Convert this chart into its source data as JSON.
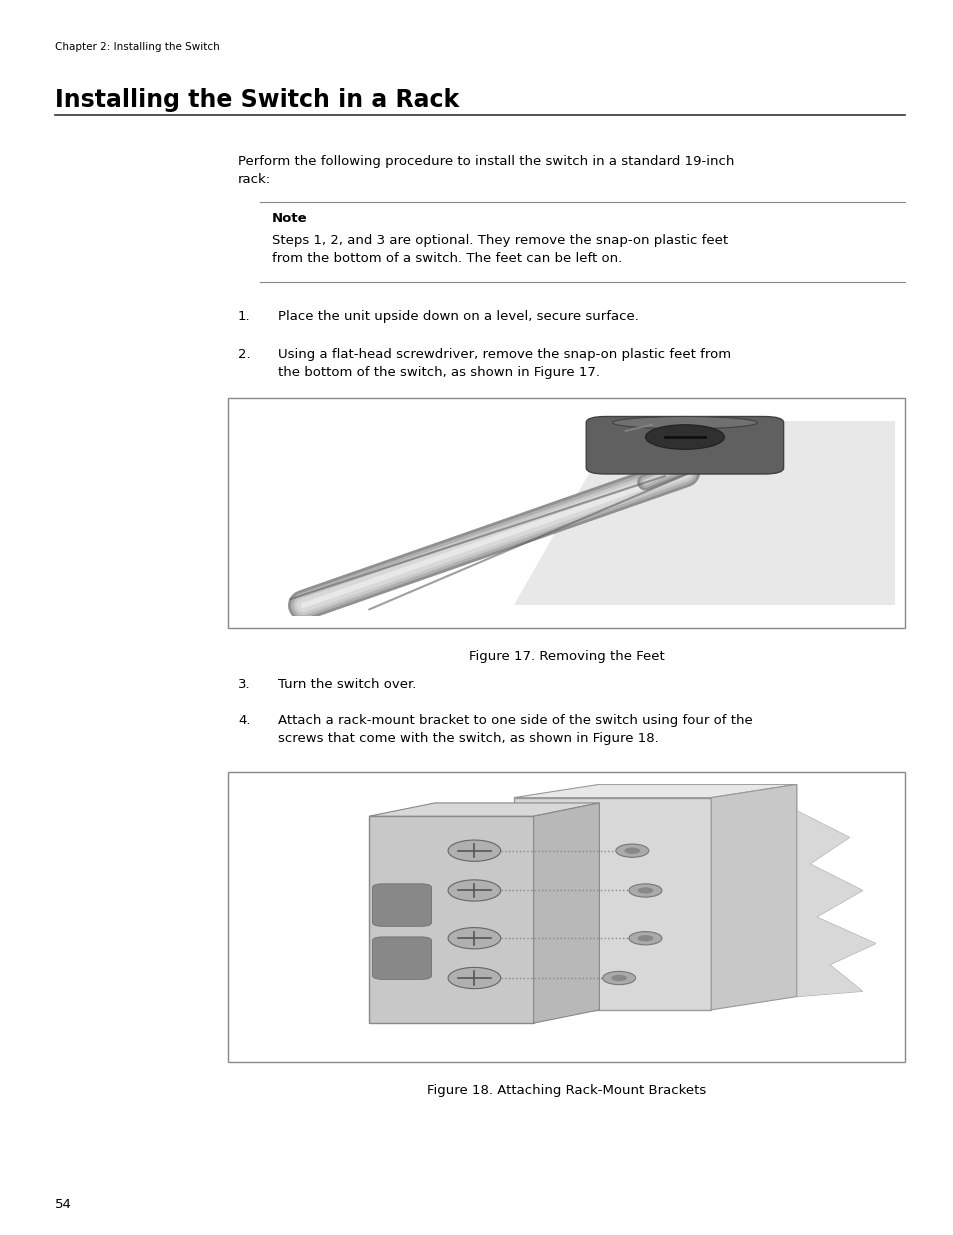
{
  "page_width": 9.54,
  "page_height": 12.35,
  "background_color": "#ffffff",
  "header_text": "Chapter 2: Installing the Switch",
  "header_fontsize": 7.5,
  "title_text": "Installing the Switch in a Rack",
  "title_fontsize": 17,
  "body_text_intro": "Perform the following procedure to install the switch in a standard 19-inch\nrack:",
  "body_fontsize": 9.5,
  "note_label": "Note",
  "note_body": "Steps 1, 2, and 3 are optional. They remove the snap-on plastic feet\nfrom the bottom of a switch. The feet can be left on.",
  "note_fontsize": 9.5,
  "steps": [
    "Place the unit upside down on a level, secure surface.",
    "Using a flat-head screwdriver, remove the snap-on plastic feet from\nthe bottom of the switch, as shown in Figure 17.",
    "Turn the switch over.",
    "Attach a rack-mount bracket to one side of the switch using four of the\nscrews that come with the switch, as shown in Figure 18."
  ],
  "fig1_caption": "Figure 17. Removing the Feet",
  "fig2_caption": "Figure 18. Attaching Rack-Mount Brackets",
  "page_number": "54",
  "text_color": "#000000",
  "note_line_color": "#888888",
  "box_border_color": "#888888"
}
